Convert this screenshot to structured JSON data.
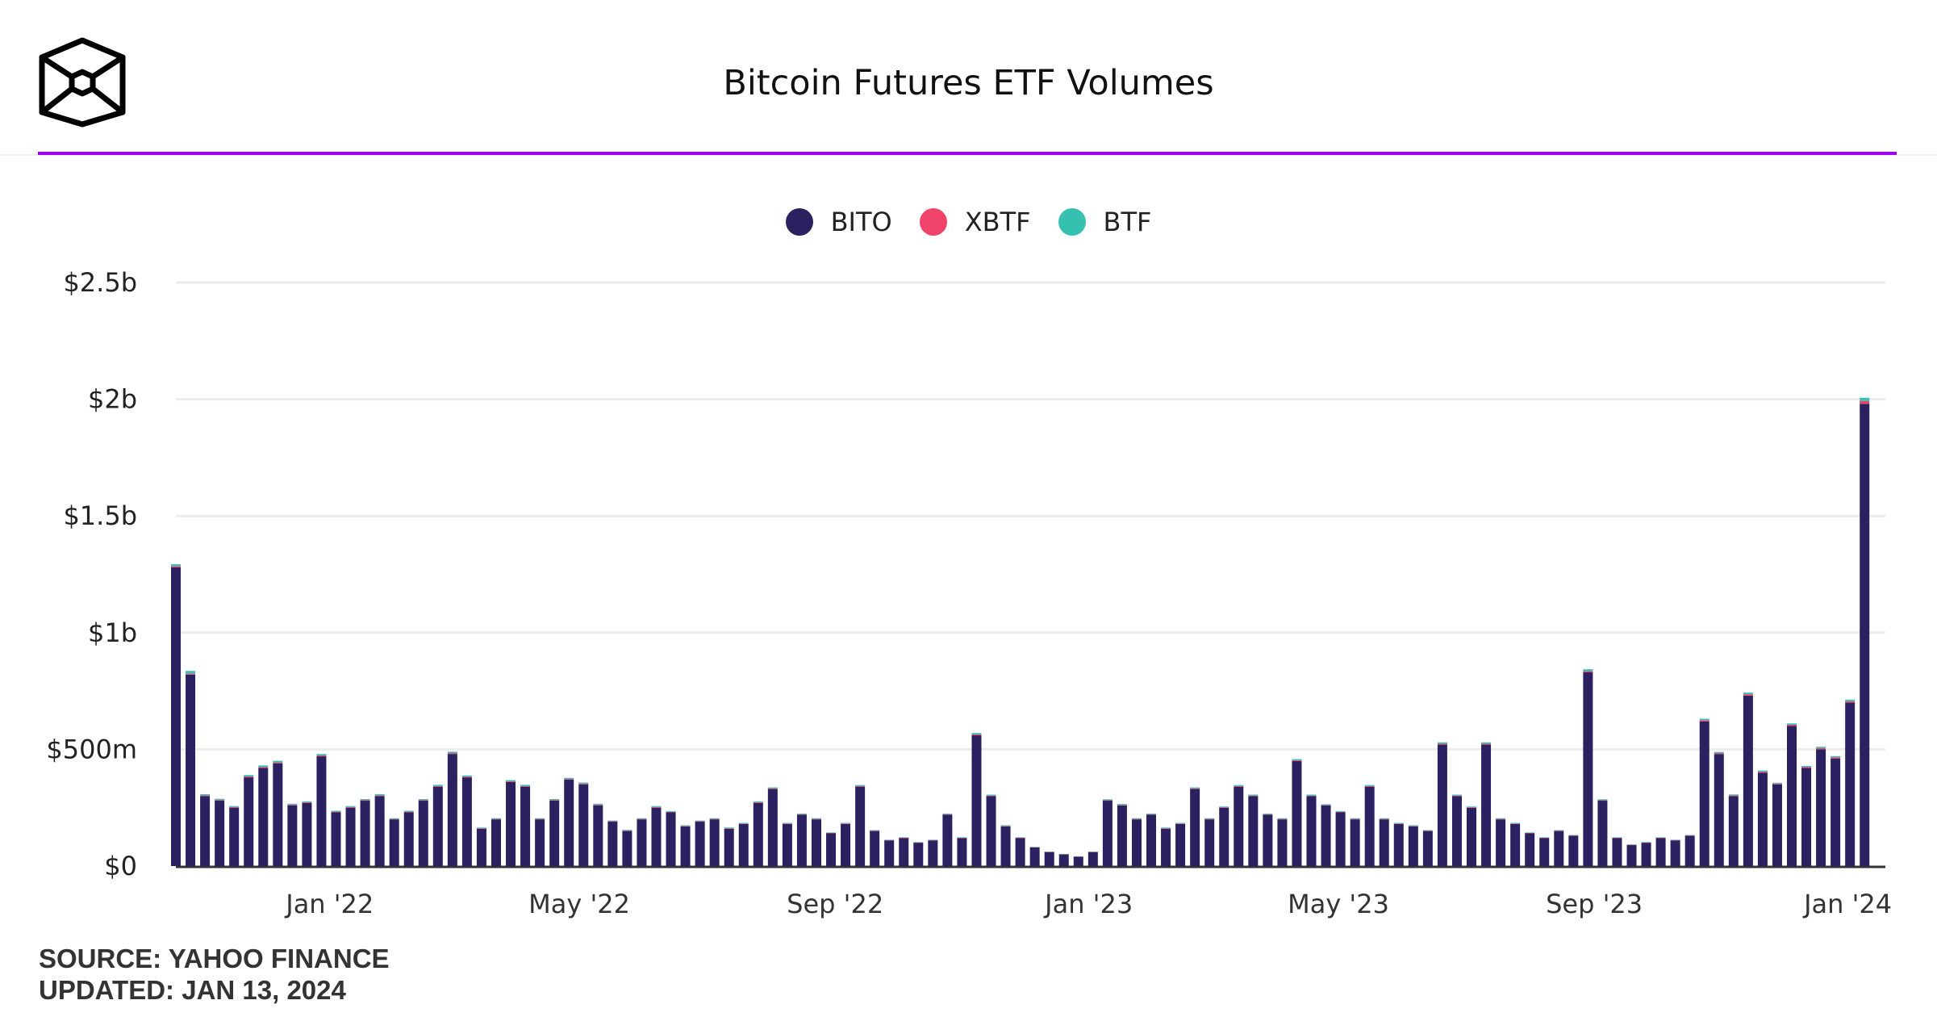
{
  "header": {
    "title": "Bitcoin Futures ETF Volumes",
    "accent_color": "#a000f0"
  },
  "legend": [
    {
      "label": "BITO",
      "color": "#2b2160"
    },
    {
      "label": "XBTF",
      "color": "#f0436a"
    },
    {
      "label": "BTF",
      "color": "#35c0b0"
    }
  ],
  "footer": {
    "source": "SOURCE: YAHOO FINANCE",
    "updated": "UPDATED: JAN 13, 2024"
  },
  "chart_data": {
    "type": "bar",
    "stacked": true,
    "title": "Bitcoin Futures ETF Volumes",
    "unit": "USD millions",
    "grid": true,
    "legend_position": "top",
    "xlim": [
      "2021-10-19",
      "2024-01-19"
    ],
    "ylim": [
      0,
      2500
    ],
    "y_ticks": [
      {
        "value": 0,
        "label": "$0"
      },
      {
        "value": 500,
        "label": "$500m"
      },
      {
        "value": 1000,
        "label": "$1b"
      },
      {
        "value": 1500,
        "label": "$1.5b"
      },
      {
        "value": 2000,
        "label": "$2b"
      },
      {
        "value": 2500,
        "label": "$2.5b"
      }
    ],
    "x_ticks": [
      {
        "date": "2022-01-01",
        "label": "Jan '22"
      },
      {
        "date": "2022-05-01",
        "label": "May '22"
      },
      {
        "date": "2022-09-01",
        "label": "Sep '22"
      },
      {
        "date": "2023-01-01",
        "label": "Jan '23"
      },
      {
        "date": "2023-05-01",
        "label": "May '23"
      },
      {
        "date": "2023-09-01",
        "label": "Sep '23"
      },
      {
        "date": "2024-01-01",
        "label": "Jan '24"
      }
    ],
    "x": [
      "2021-10-19",
      "2021-10-26",
      "2021-11-02",
      "2021-11-09",
      "2021-11-16",
      "2021-11-23",
      "2021-11-30",
      "2021-12-07",
      "2021-12-14",
      "2021-12-21",
      "2021-12-28",
      "2022-01-04",
      "2022-01-11",
      "2022-01-18",
      "2022-01-25",
      "2022-02-01",
      "2022-02-08",
      "2022-02-15",
      "2022-02-22",
      "2022-03-01",
      "2022-03-08",
      "2022-03-15",
      "2022-03-22",
      "2022-03-29",
      "2022-04-05",
      "2022-04-12",
      "2022-04-19",
      "2022-04-26",
      "2022-05-03",
      "2022-05-10",
      "2022-05-17",
      "2022-05-24",
      "2022-05-31",
      "2022-06-07",
      "2022-06-14",
      "2022-06-21",
      "2022-06-28",
      "2022-07-05",
      "2022-07-12",
      "2022-07-19",
      "2022-07-26",
      "2022-08-02",
      "2022-08-09",
      "2022-08-16",
      "2022-08-23",
      "2022-08-30",
      "2022-09-06",
      "2022-09-13",
      "2022-09-20",
      "2022-09-27",
      "2022-10-04",
      "2022-10-11",
      "2022-10-18",
      "2022-10-25",
      "2022-11-01",
      "2022-11-08",
      "2022-11-15",
      "2022-11-22",
      "2022-11-29",
      "2022-12-06",
      "2022-12-13",
      "2022-12-20",
      "2022-12-27",
      "2023-01-03",
      "2023-01-10",
      "2023-01-17",
      "2023-01-24",
      "2023-01-31",
      "2023-02-07",
      "2023-02-14",
      "2023-02-21",
      "2023-02-28",
      "2023-03-07",
      "2023-03-14",
      "2023-03-21",
      "2023-03-28",
      "2023-04-04",
      "2023-04-11",
      "2023-04-18",
      "2023-04-25",
      "2023-05-02",
      "2023-05-09",
      "2023-05-16",
      "2023-05-23",
      "2023-05-30",
      "2023-06-06",
      "2023-06-13",
      "2023-06-20",
      "2023-06-27",
      "2023-07-04",
      "2023-07-11",
      "2023-07-18",
      "2023-07-25",
      "2023-08-01",
      "2023-08-08",
      "2023-08-15",
      "2023-08-22",
      "2023-08-29",
      "2023-09-05",
      "2023-09-12",
      "2023-09-19",
      "2023-09-26",
      "2023-10-03",
      "2023-10-10",
      "2023-10-17",
      "2023-10-24",
      "2023-10-31",
      "2023-11-07",
      "2023-11-14",
      "2023-11-21",
      "2023-11-28",
      "2023-12-05",
      "2023-12-12",
      "2023-12-19",
      "2023-12-26",
      "2024-01-02",
      "2024-01-09"
    ],
    "series": [
      {
        "name": "BITO",
        "values": [
          1280,
          820,
          300,
          280,
          250,
          380,
          420,
          440,
          260,
          270,
          470,
          230,
          250,
          280,
          300,
          200,
          230,
          280,
          340,
          480,
          380,
          160,
          200,
          360,
          340,
          200,
          280,
          370,
          350,
          260,
          190,
          150,
          200,
          250,
          230,
          170,
          190,
          200,
          160,
          180,
          270,
          330,
          180,
          220,
          200,
          140,
          180,
          340,
          150,
          110,
          120,
          100,
          110,
          220,
          120,
          560,
          300,
          170,
          120,
          80,
          60,
          50,
          40,
          60,
          280,
          260,
          200,
          220,
          160,
          180,
          330,
          200,
          250,
          340,
          300,
          220,
          200,
          450,
          300,
          260,
          230,
          200,
          340,
          200,
          180,
          170,
          150,
          520,
          300,
          250,
          520,
          200,
          180,
          140,
          120,
          150,
          130,
          830,
          280,
          120,
          90,
          100,
          120,
          110,
          130,
          620,
          480,
          300,
          730,
          400,
          350,
          600,
          420,
          500,
          460,
          700,
          1980
        ]
      },
      {
        "name": "XBTF",
        "values": [
          5,
          4,
          3,
          3,
          3,
          4,
          4,
          4,
          3,
          3,
          4,
          3,
          3,
          3,
          3,
          2,
          3,
          3,
          3,
          4,
          3,
          2,
          2,
          3,
          3,
          2,
          3,
          3,
          3,
          3,
          2,
          2,
          2,
          3,
          2,
          2,
          2,
          2,
          2,
          2,
          3,
          3,
          2,
          2,
          2,
          2,
          2,
          3,
          2,
          1,
          1,
          1,
          1,
          2,
          1,
          4,
          2,
          2,
          1,
          1,
          1,
          1,
          1,
          1,
          2,
          2,
          2,
          2,
          2,
          2,
          3,
          2,
          2,
          3,
          2,
          2,
          2,
          3,
          2,
          2,
          2,
          2,
          3,
          2,
          2,
          2,
          2,
          4,
          2,
          2,
          4,
          2,
          2,
          2,
          1,
          2,
          1,
          5,
          2,
          1,
          1,
          1,
          1,
          1,
          1,
          5,
          4,
          3,
          6,
          4,
          3,
          5,
          4,
          5,
          5,
          6,
          12
        ]
      },
      {
        "name": "BTF",
        "values": [
          8,
          12,
          5,
          5,
          4,
          6,
          7,
          7,
          4,
          4,
          6,
          4,
          4,
          4,
          5,
          3,
          4,
          4,
          5,
          6,
          5,
          3,
          3,
          5,
          5,
          3,
          4,
          5,
          5,
          4,
          3,
          3,
          3,
          4,
          3,
          3,
          3,
          3,
          3,
          3,
          4,
          4,
          3,
          3,
          3,
          2,
          3,
          4,
          2,
          2,
          2,
          2,
          2,
          3,
          2,
          6,
          4,
          3,
          2,
          1,
          1,
          1,
          1,
          1,
          4,
          4,
          3,
          3,
          3,
          3,
          4,
          3,
          3,
          4,
          4,
          3,
          3,
          5,
          4,
          3,
          3,
          3,
          4,
          3,
          3,
          3,
          2,
          6,
          4,
          3,
          6,
          3,
          3,
          2,
          2,
          2,
          2,
          8,
          4,
          2,
          2,
          2,
          2,
          2,
          2,
          6,
          5,
          4,
          7,
          5,
          4,
          6,
          5,
          6,
          6,
          7,
          14
        ]
      }
    ]
  }
}
